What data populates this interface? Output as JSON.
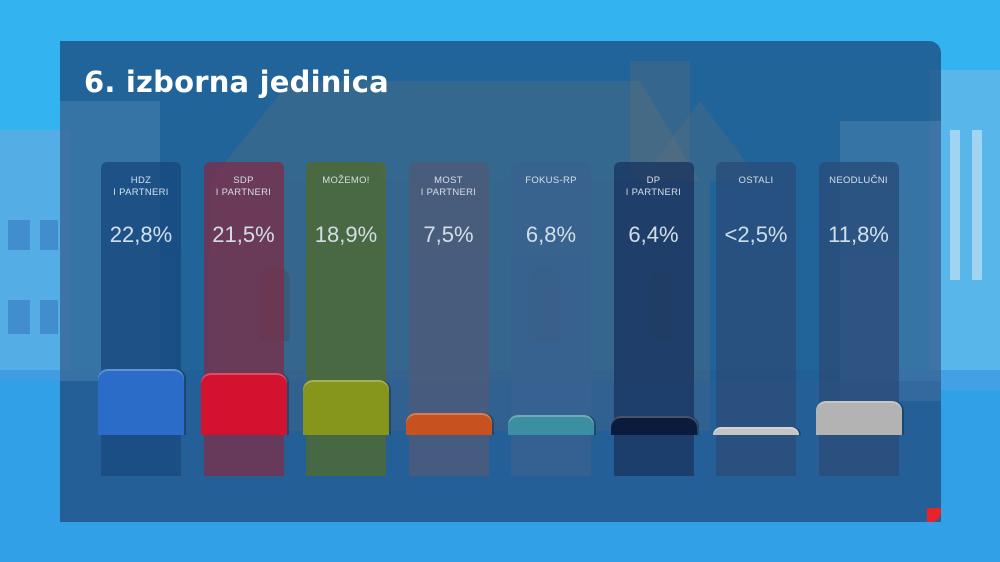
{
  "title": "6. izborna jedinica",
  "chart_data": {
    "type": "bar",
    "title": "6. izborna jedinica",
    "categories": [
      "HDZ\nI PARTNERI",
      "SDP\nI PARTNERI",
      "MOŽEMO!",
      "MOST\nI PARTNERI",
      "FOKUS-RP",
      "DP\nI PARTNERI",
      "OSTALI",
      "NEODLUČNI"
    ],
    "value_labels": [
      "22,8%",
      "21,5%",
      "18,9%",
      "7,5%",
      "6,8%",
      "6,4%",
      "<2,5%",
      "11,8%"
    ],
    "values": [
      22.8,
      21.5,
      18.9,
      7.5,
      6.8,
      6.4,
      2.5,
      11.8
    ],
    "colors": [
      "#2c6cc9",
      "#d31230",
      "#86961a",
      "#c8521f",
      "#3c8fa1",
      "#0b1b3c",
      "#c4c4c4",
      "#b3b3b3"
    ],
    "column_colors": [
      "#17497f",
      "#7a2e4a",
      "#4f6a2e",
      "#4e5a78",
      "#38628f",
      "#1a3560",
      "#2a4c79",
      "#2a4c79"
    ],
    "xlabel": "",
    "ylabel": "",
    "grid": false,
    "legend": "none"
  }
}
